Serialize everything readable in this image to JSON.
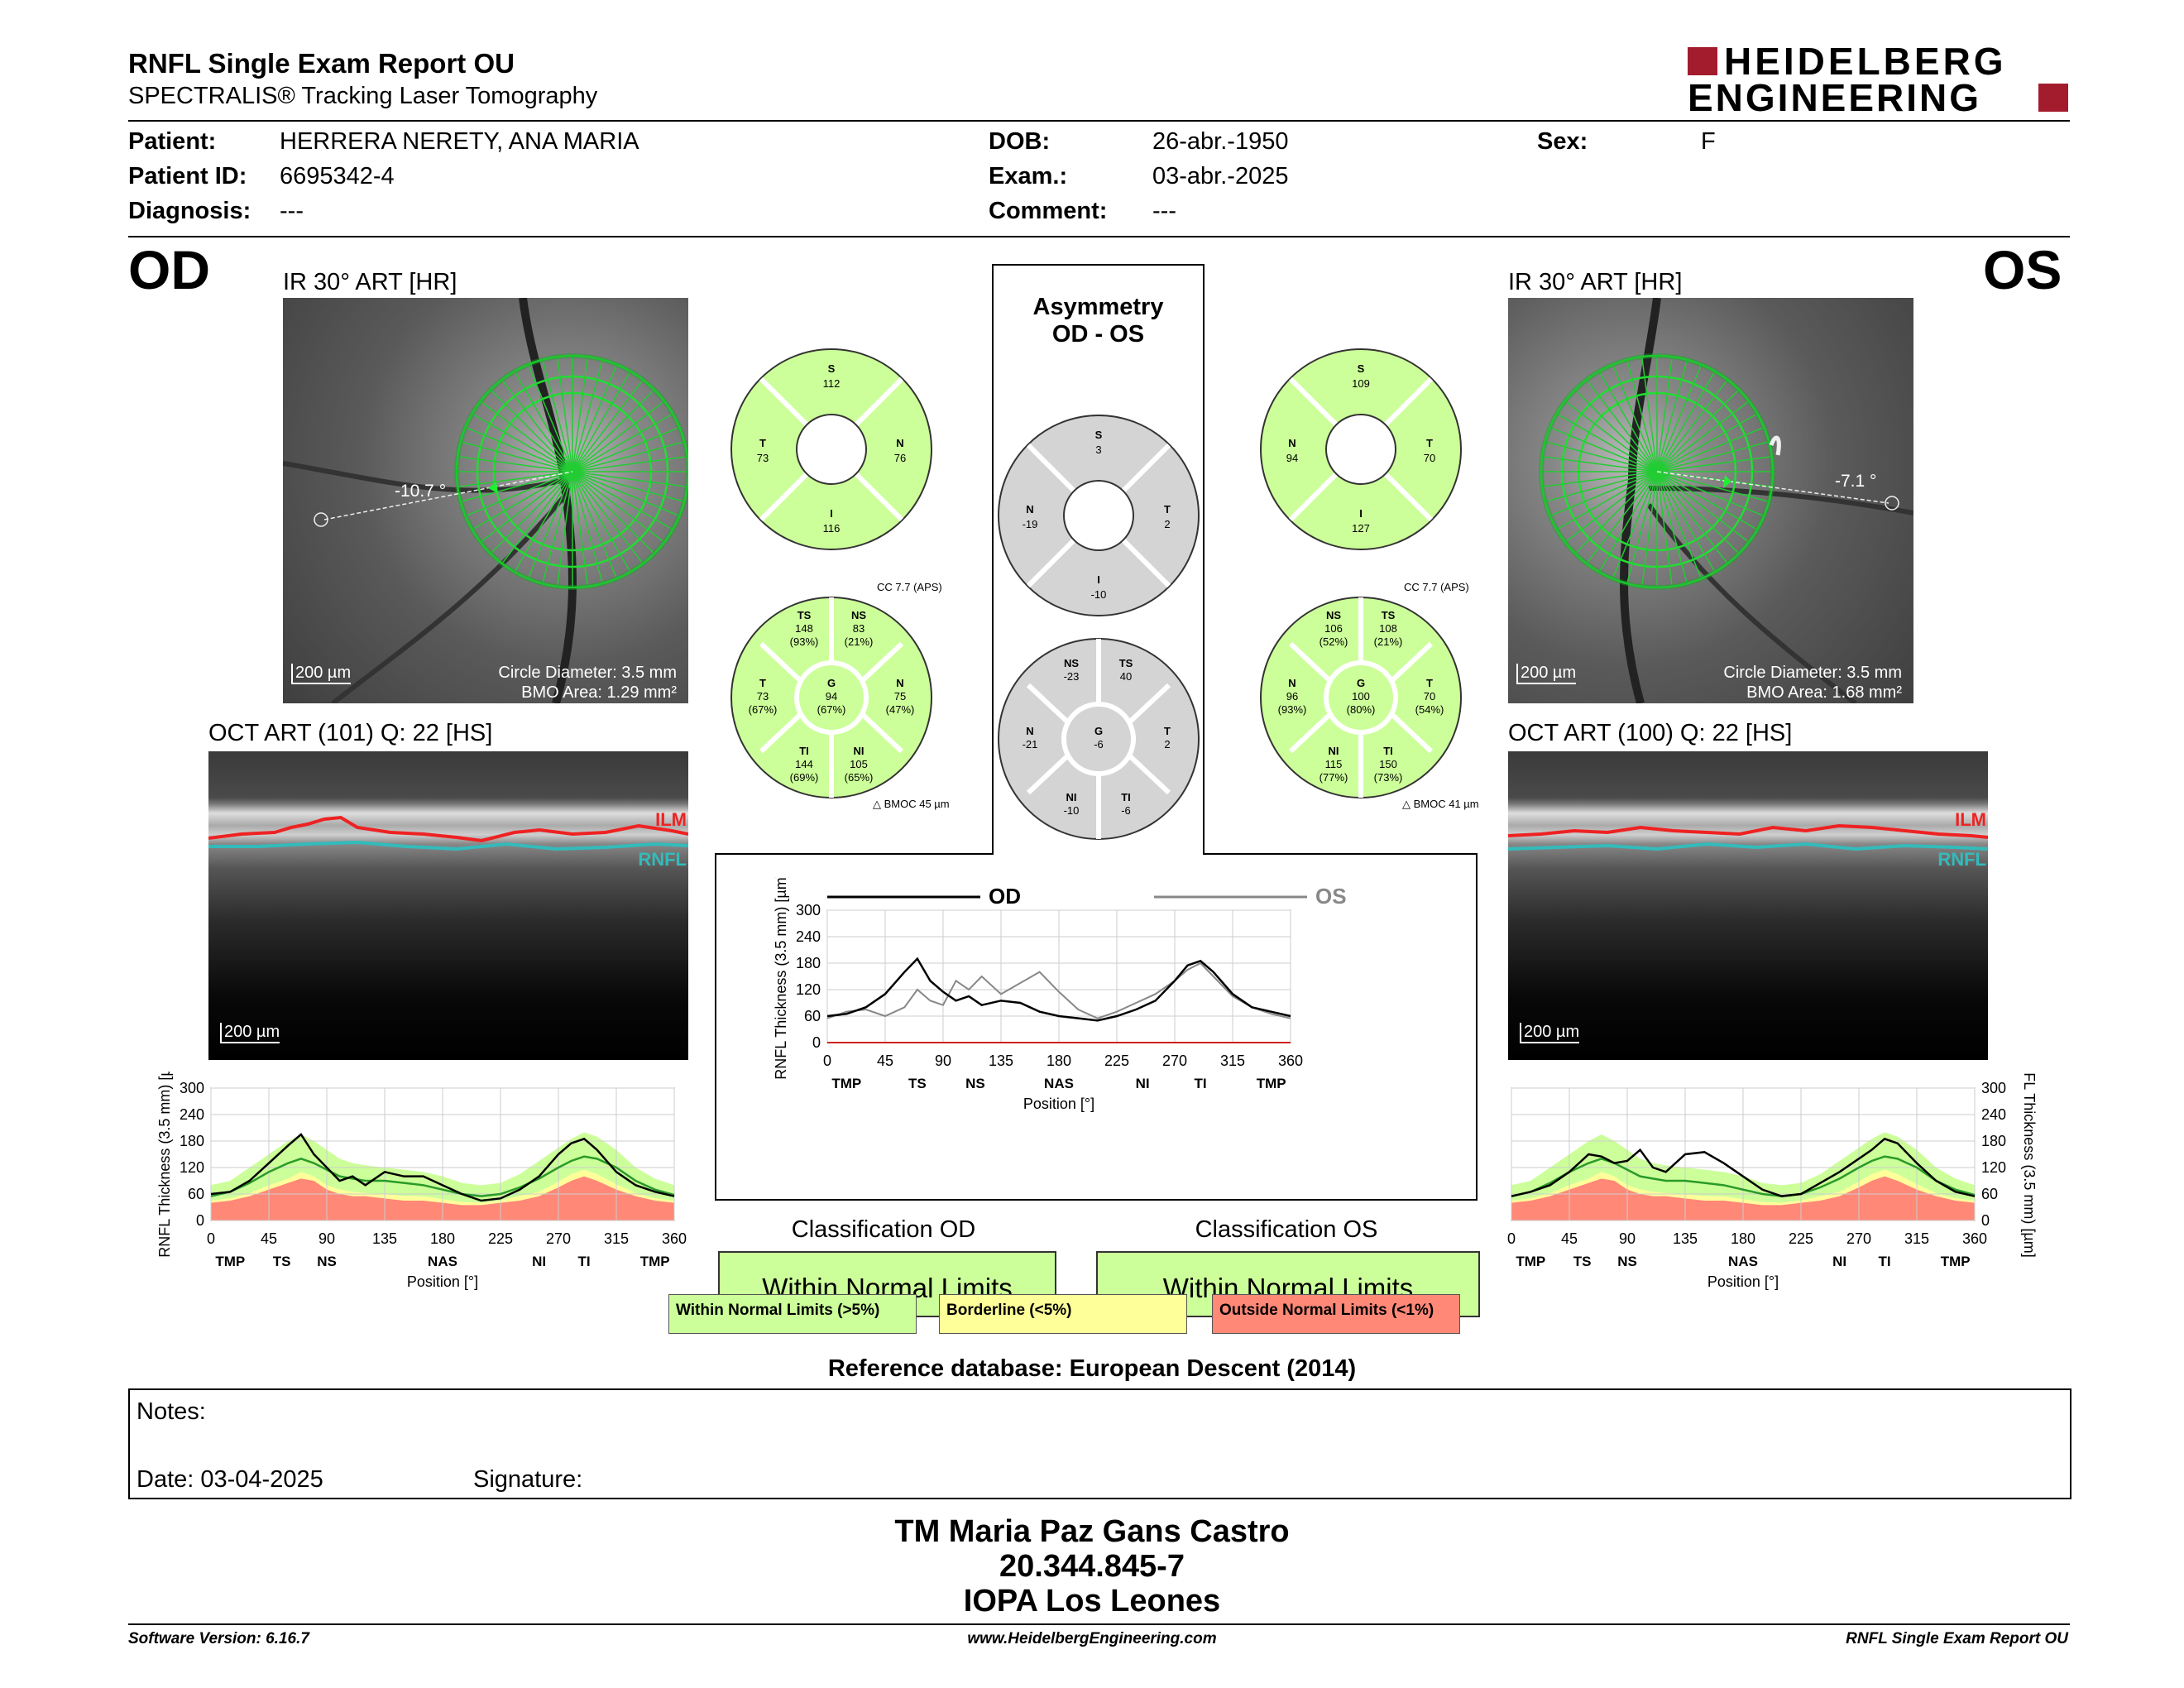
{
  "header": {
    "title": "RNFL Single Exam Report OU",
    "subtitle": "SPECTRALIS® Tracking Laser Tomography",
    "brand_line1": "HEIDELBERG",
    "brand_line2": "ENGINEERING",
    "brand_color": "#a31c2e"
  },
  "patient": {
    "patient_label": "Patient:",
    "patient_name": "HERRERA NERETY, ANA MARIA",
    "id_label": "Patient ID:",
    "id_value": "6695342-4",
    "diagnosis_label": "Diagnosis:",
    "diagnosis_value": "---",
    "dob_label": "DOB:",
    "dob_value": "26-abr.-1950",
    "exam_label": "Exam.:",
    "exam_value": "03-abr.-2025",
    "comment_label": "Comment:",
    "comment_value": "---",
    "sex_label": "Sex:",
    "sex_value": "F"
  },
  "od": {
    "eye": "OD",
    "ir_title": "IR 30° ART [HR]",
    "angle": "-10.7 °",
    "scale": "200 µm",
    "circle_diameter": "Circle Diameter: 3.5 mm",
    "bmo_area": "BMO Area: 1.29 mm²",
    "oct_title": "OCT ART (101) Q: 22 [HS]",
    "ilm": "ILM",
    "rnfl": "RNFL",
    "oct_scale": "200 µm",
    "quad": {
      "S": "112",
      "T": "73",
      "N": "76",
      "I": "116"
    },
    "cc": "CC 7.7 (APS)",
    "bmoc": "BMOC 45 µm",
    "sectors": {
      "TS": {
        "v": "148",
        "p": "(93%)"
      },
      "NS": {
        "v": "83",
        "p": "(21%)"
      },
      "T": {
        "v": "73",
        "p": "(67%)"
      },
      "G": {
        "v": "94",
        "p": "(67%)"
      },
      "N": {
        "v": "75",
        "p": "(47%)"
      },
      "TI": {
        "v": "144",
        "p": "(69%)"
      },
      "NI": {
        "v": "105",
        "p": "(65%)"
      }
    },
    "classification_title": "Classification OD",
    "classification_value": "Within Normal Limits"
  },
  "os": {
    "eye": "OS",
    "ir_title": "IR 30° ART [HR]",
    "angle": "-7.1 °",
    "scale": "200 µm",
    "circle_diameter": "Circle Diameter: 3.5 mm",
    "bmo_area": "BMO Area: 1.68 mm²",
    "oct_title": "OCT ART (100) Q: 22 [HS]",
    "ilm": "ILM",
    "rnfl": "RNFL",
    "oct_scale": "200 µm",
    "quad": {
      "S": "109",
      "N": "94",
      "T": "70",
      "I": "127"
    },
    "cc": "CC 7.7 (APS)",
    "bmoc": "BMOC 41 µm",
    "sectors": {
      "NS": {
        "v": "106",
        "p": "(52%)"
      },
      "TS": {
        "v": "108",
        "p": "(21%)"
      },
      "N": {
        "v": "96",
        "p": "(93%)"
      },
      "G": {
        "v": "100",
        "p": "(80%)"
      },
      "T": {
        "v": "70",
        "p": "(54%)"
      },
      "NI": {
        "v": "115",
        "p": "(77%)"
      },
      "TI": {
        "v": "150",
        "p": "(73%)"
      }
    },
    "classification_title": "Classification OS",
    "classification_value": "Within Normal Limits"
  },
  "asym": {
    "title1": "Asymmetry",
    "title2": "OD - OS",
    "quad": {
      "S": "3",
      "N": "-19",
      "T": "2",
      "I": "-10"
    },
    "sectors": {
      "NS": "-23",
      "TS": "40",
      "N": "-21",
      "G": "-6",
      "T": "2",
      "NI": "-10",
      "TI": "-6"
    }
  },
  "labels": {
    "S": "S",
    "T": "T",
    "N": "N",
    "I": "I",
    "TS": "TS",
    "NS": "NS",
    "G": "G",
    "TI": "TI",
    "NI": "NI"
  },
  "chart_data": [
    {
      "type": "line",
      "name_od": "OD",
      "name_os": "OS",
      "xlabel": "Position [°]",
      "ylabel": "RNFL Thickness (3.5 mm) [µm]",
      "xticks": [
        "0",
        "45",
        "90",
        "135",
        "180",
        "225",
        "270",
        "315",
        "360"
      ],
      "yticks": [
        "0",
        "60",
        "120",
        "180",
        "240",
        "300"
      ],
      "sector_labels": [
        "TMP",
        "TS",
        "NS",
        "NAS",
        "NI",
        "TI",
        "TMP"
      ],
      "sector_positions": [
        15,
        70,
        115,
        180,
        245,
        290,
        345
      ],
      "xlim": [
        0,
        360
      ],
      "ylim": [
        0,
        300
      ],
      "x": [
        0,
        15,
        30,
        45,
        60,
        70,
        80,
        90,
        100,
        110,
        120,
        135,
        150,
        165,
        180,
        195,
        210,
        225,
        240,
        255,
        270,
        280,
        290,
        300,
        315,
        330,
        345,
        360
      ],
      "od_y": [
        60,
        65,
        80,
        110,
        160,
        190,
        140,
        115,
        95,
        105,
        85,
        95,
        90,
        70,
        60,
        55,
        50,
        60,
        75,
        95,
        140,
        175,
        185,
        160,
        110,
        80,
        70,
        60
      ],
      "os_y": [
        55,
        70,
        75,
        60,
        80,
        120,
        95,
        85,
        140,
        120,
        150,
        110,
        135,
        160,
        115,
        75,
        55,
        70,
        90,
        110,
        140,
        165,
        180,
        150,
        105,
        80,
        65,
        55
      ]
    },
    {
      "type": "area",
      "eye": "OD",
      "xlabel": "Position [°]",
      "ylabel": "RNFL Thickness (3.5 mm) [µm]",
      "xticks": [
        "0",
        "45",
        "90",
        "135",
        "180",
        "225",
        "270",
        "315",
        "360"
      ],
      "yticks": [
        "0",
        "60",
        "120",
        "180",
        "240",
        "300"
      ],
      "sector_labels": [
        "TMP",
        "TS",
        "NS",
        "NAS",
        "NI",
        "TI",
        "TMP"
      ],
      "sector_positions": [
        15,
        55,
        90,
        180,
        255,
        290,
        345
      ],
      "xlim": [
        0,
        360
      ],
      "ylim": [
        0,
        300
      ],
      "x": [
        0,
        15,
        30,
        45,
        60,
        70,
        80,
        90,
        100,
        110,
        120,
        135,
        150,
        165,
        180,
        195,
        210,
        225,
        240,
        255,
        270,
        280,
        290,
        300,
        315,
        330,
        345,
        360
      ],
      "y": [
        60,
        65,
        90,
        130,
        170,
        195,
        150,
        120,
        90,
        100,
        80,
        110,
        100,
        100,
        80,
        60,
        45,
        50,
        70,
        100,
        150,
        175,
        185,
        160,
        110,
        80,
        65,
        55
      ],
      "mean": [
        55,
        65,
        85,
        110,
        130,
        140,
        130,
        115,
        100,
        95,
        90,
        90,
        85,
        80,
        70,
        60,
        55,
        60,
        75,
        95,
        120,
        135,
        145,
        140,
        120,
        90,
        70,
        58
      ],
      "red_top": [
        40,
        45,
        55,
        70,
        85,
        95,
        90,
        70,
        60,
        55,
        55,
        50,
        45,
        45,
        40,
        35,
        35,
        40,
        45,
        55,
        75,
        90,
        100,
        90,
        70,
        55,
        45,
        40
      ],
      "yellow_top": [
        45,
        50,
        62,
        80,
        95,
        110,
        100,
        80,
        70,
        65,
        62,
        60,
        55,
        55,
        48,
        42,
        40,
        45,
        55,
        65,
        88,
        105,
        115,
        105,
        82,
        62,
        50,
        45
      ],
      "green_top": [
        80,
        90,
        120,
        150,
        180,
        195,
        180,
        160,
        140,
        130,
        125,
        120,
        115,
        110,
        100,
        85,
        80,
        85,
        105,
        135,
        165,
        185,
        200,
        190,
        160,
        120,
        95,
        80
      ]
    },
    {
      "type": "area",
      "eye": "OS",
      "xlabel": "Position [°]",
      "ylabel": "RNFL Thickness (3.5 mm) [µm]",
      "xticks": [
        "0",
        "45",
        "90",
        "135",
        "180",
        "225",
        "270",
        "315",
        "360"
      ],
      "yticks": [
        "0",
        "60",
        "120",
        "180",
        "240",
        "300"
      ],
      "sector_labels": [
        "TMP",
        "TS",
        "NS",
        "NAS",
        "NI",
        "TI",
        "TMP"
      ],
      "sector_positions": [
        15,
        55,
        90,
        180,
        255,
        290,
        345
      ],
      "xlim": [
        0,
        360
      ],
      "ylim": [
        0,
        300
      ],
      "x": [
        0,
        15,
        30,
        45,
        60,
        70,
        80,
        90,
        100,
        110,
        120,
        135,
        150,
        165,
        180,
        195,
        210,
        225,
        240,
        255,
        270,
        280,
        290,
        300,
        315,
        330,
        345,
        360
      ],
      "y": [
        55,
        65,
        80,
        110,
        150,
        145,
        130,
        135,
        160,
        120,
        110,
        150,
        155,
        130,
        100,
        70,
        55,
        60,
        85,
        110,
        140,
        160,
        185,
        175,
        130,
        90,
        65,
        55
      ],
      "mean": [
        55,
        65,
        85,
        110,
        130,
        140,
        130,
        115,
        100,
        95,
        90,
        90,
        85,
        80,
        70,
        60,
        55,
        60,
        75,
        95,
        120,
        135,
        145,
        140,
        120,
        90,
        70,
        58
      ],
      "red_top": [
        40,
        45,
        55,
        70,
        85,
        95,
        90,
        70,
        60,
        55,
        55,
        50,
        45,
        45,
        40,
        35,
        35,
        40,
        45,
        55,
        75,
        90,
        100,
        90,
        70,
        55,
        45,
        40
      ],
      "yellow_top": [
        45,
        50,
        62,
        80,
        95,
        110,
        100,
        80,
        70,
        65,
        62,
        60,
        55,
        55,
        48,
        42,
        40,
        45,
        55,
        65,
        88,
        105,
        115,
        105,
        82,
        62,
        50,
        45
      ],
      "green_top": [
        80,
        90,
        120,
        150,
        180,
        195,
        180,
        160,
        140,
        130,
        125,
        120,
        115,
        110,
        100,
        85,
        80,
        85,
        105,
        135,
        165,
        185,
        200,
        190,
        160,
        120,
        95,
        80
      ]
    }
  ],
  "legend": {
    "within": "Within Normal Limits (>5%)",
    "borderline": "Borderline (<5%)",
    "outside": "Outside Normal Limits (<1%)",
    "green": "#ccff99",
    "yellow": "#ffff99",
    "red": "#ff8877"
  },
  "reference_db": "Reference database: European Descent (2014)",
  "notes": {
    "label": "Notes:",
    "date": "Date: 03-04-2025",
    "signature": "Signature:"
  },
  "footer": {
    "line1": "TM Maria Paz Gans Castro",
    "line2": "20.344.845-7",
    "line3": "IOPA Los Leones",
    "software": "Software Version: 6.16.7",
    "website": "www.HeidelbergEngineering.com",
    "report": "RNFL Single Exam Report OU"
  }
}
